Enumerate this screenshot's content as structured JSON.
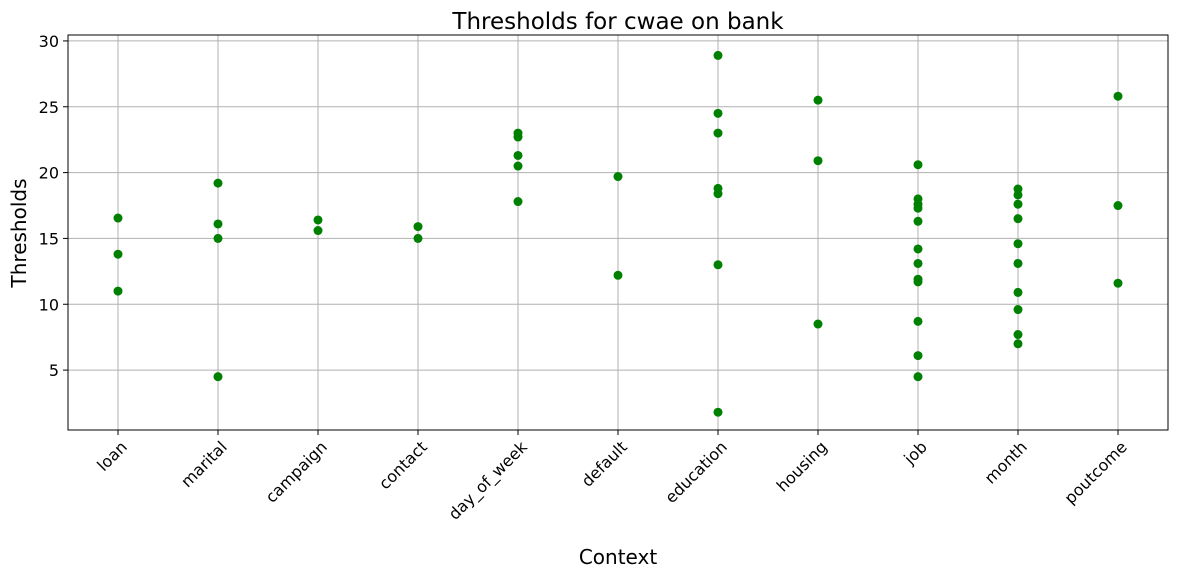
{
  "chart_data": {
    "type": "scatter",
    "title": "Thresholds for cwae on bank",
    "x_label": "Context",
    "y_label": "Thresholds",
    "categories": [
      "loan",
      "marital",
      "campaign",
      "contact",
      "day_of_week",
      "default",
      "education",
      "housing",
      "job",
      "month",
      "poutcome"
    ],
    "x": [
      "loan",
      "loan",
      "loan",
      "marital",
      "marital",
      "marital",
      "marital",
      "campaign",
      "campaign",
      "contact",
      "contact",
      "day_of_week",
      "day_of_week",
      "day_of_week",
      "day_of_week",
      "day_of_week",
      "default",
      "default",
      "education",
      "education",
      "education",
      "education",
      "education",
      "education",
      "education",
      "housing",
      "housing",
      "housing",
      "job",
      "job",
      "job",
      "job",
      "job",
      "job",
      "job",
      "job",
      "job",
      "job",
      "job",
      "job",
      "month",
      "month",
      "month",
      "month",
      "month",
      "month",
      "month",
      "month",
      "month",
      "month",
      "poutcome",
      "poutcome",
      "poutcome"
    ],
    "y": [
      16.55,
      13.8,
      11.0,
      19.2,
      16.1,
      15.0,
      4.5,
      16.4,
      15.6,
      15.9,
      15.0,
      23.0,
      22.7,
      21.3,
      20.5,
      17.8,
      19.7,
      12.2,
      28.9,
      24.5,
      23.0,
      18.8,
      18.4,
      13.0,
      1.8,
      25.5,
      20.9,
      8.5,
      20.6,
      18.0,
      17.6,
      17.3,
      16.3,
      14.2,
      13.1,
      11.9,
      11.7,
      8.7,
      6.1,
      4.5,
      18.75,
      18.3,
      17.6,
      16.5,
      14.6,
      13.1,
      10.9,
      9.6,
      7.7,
      7.0,
      25.8,
      17.5,
      11.6
    ],
    "color": "#008000",
    "ylim": [
      0.45,
      30.45
    ],
    "yticks": [
      5,
      10,
      15,
      20,
      25,
      30
    ],
    "grid": true
  }
}
